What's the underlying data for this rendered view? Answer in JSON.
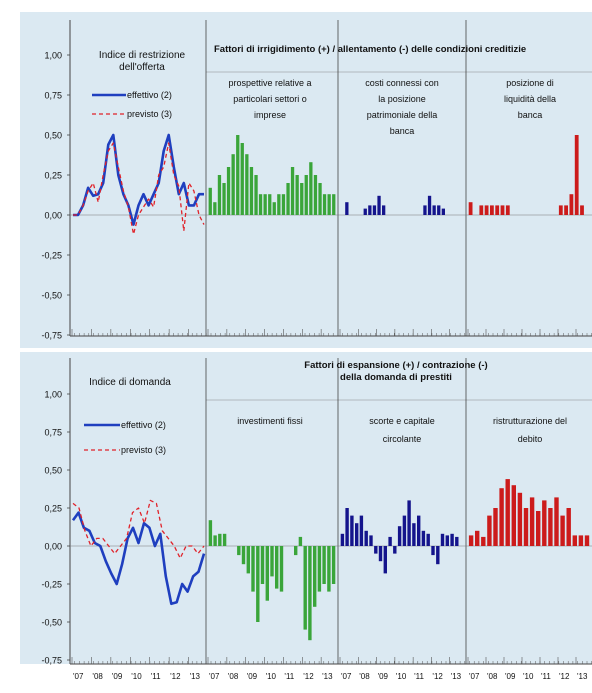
{
  "colors": {
    "background": "#dbe9f2",
    "effettivo": "#1f3fbf",
    "previsto": "#e0222a",
    "green": "#3aa53a",
    "blue": "#14148c",
    "red": "#cc1b1b",
    "axis": "#555555"
  },
  "y_ticks": [
    "1,00",
    "0,75",
    "0,50",
    "0,25",
    "0,00",
    "-0,25",
    "-0,50",
    "-0,75"
  ],
  "x_tick_labels": [
    "'07",
    "'08",
    "'09",
    "'10",
    "'11",
    "'12",
    "'13"
  ],
  "chart_data": [
    {
      "type": "line+bar",
      "title_left": "Indice di restrizione dell'offerta",
      "title_right": "Fattori di irrigidimento (+) / allentamento (-) delle condizioni creditizie",
      "ylim": [
        -0.75,
        1.0
      ],
      "grid": false,
      "legend": [
        "effettivo (2)",
        "previsto (3)"
      ],
      "lines": [
        {
          "name": "effettivo (2)",
          "style": "solid",
          "values": [
            0,
            0,
            0.06,
            0.17,
            0.12,
            0.13,
            0.2,
            0.44,
            0.5,
            0.25,
            0.13,
            0.06,
            -0.06,
            0.06,
            0.13,
            0.06,
            0.13,
            0.2,
            0.4,
            0.5,
            0.3,
            0.13,
            0.2,
            0.06,
            0.06,
            0.13,
            0.13
          ]
        },
        {
          "name": "previsto (3)",
          "style": "dashed",
          "values": [
            0,
            0,
            0.06,
            0.15,
            0.2,
            0.08,
            0.25,
            0.4,
            0.45,
            0.3,
            0.15,
            0.05,
            -0.12,
            0.0,
            0.05,
            0.1,
            0.05,
            0.25,
            0.3,
            0.45,
            0.25,
            0.18,
            -0.1,
            0.2,
            0.15,
            0.0,
            -0.06
          ]
        }
      ],
      "panels": [
        {
          "label": "prospettive relative a particolari settori o imprese",
          "color": "green",
          "values": [
            0.17,
            0.08,
            0.25,
            0.2,
            0.3,
            0.38,
            0.5,
            0.45,
            0.38,
            0.3,
            0.25,
            0.13,
            0.13,
            0.13,
            0.08,
            0.13,
            0.13,
            0.2,
            0.3,
            0.25,
            0.2,
            0.25,
            0.33,
            0.25,
            0.2,
            0.13,
            0.13,
            0.13
          ]
        },
        {
          "label": "costi connessi con la posizione patrimoniale della banca",
          "color": "blue",
          "values": [
            0,
            0.08,
            0,
            0,
            0,
            0.04,
            0.06,
            0.06,
            0.12,
            0.06,
            0,
            0,
            0,
            0,
            0,
            0,
            0,
            0,
            0.06,
            0.12,
            0.06,
            0.06,
            0.04,
            0,
            0,
            0,
            0
          ]
        },
        {
          "label": "posizione di liquidità della banca",
          "color": "red",
          "values": [
            0.08,
            0,
            0.06,
            0.06,
            0.06,
            0.06,
            0.06,
            0.06,
            0,
            0,
            0,
            0,
            0,
            0,
            0,
            0,
            0,
            0.06,
            0.06,
            0.13,
            0.5,
            0.06,
            0
          ]
        }
      ]
    },
    {
      "type": "line+bar",
      "title_left": "Indice di domanda",
      "title_right": "Fattori di espansione (+) / contrazione (-) della domanda di prestiti",
      "ylim": [
        -0.75,
        1.0
      ],
      "grid": false,
      "legend": [
        "effettivo (2)",
        "previsto (3)"
      ],
      "lines": [
        {
          "name": "effettivo (2)",
          "style": "solid",
          "values": [
            0.17,
            0.22,
            0.12,
            0.1,
            0.02,
            0.0,
            -0.1,
            -0.18,
            -0.25,
            -0.12,
            0.05,
            0.12,
            0.02,
            0.15,
            0.12,
            0.0,
            0.08,
            -0.2,
            -0.38,
            -0.37,
            -0.25,
            -0.3,
            -0.2,
            -0.17,
            -0.05
          ]
        },
        {
          "name": "previsto (3)",
          "style": "dashed",
          "values": [
            0.28,
            0.25,
            0.1,
            0.0,
            0.05,
            0.05,
            0.0,
            -0.05,
            0.0,
            0.05,
            0.22,
            0.25,
            0.15,
            0.3,
            0.28,
            0.1,
            0.05,
            0.0,
            -0.08,
            0.0,
            0.0,
            -0.05,
            0.0
          ]
        }
      ],
      "panels": [
        {
          "label": "investimenti fissi",
          "color": "green",
          "values": [
            0.17,
            0.07,
            0.08,
            0.08,
            0,
            0,
            -0.06,
            -0.12,
            -0.18,
            -0.3,
            -0.5,
            -0.25,
            -0.36,
            -0.2,
            -0.28,
            -0.3,
            0,
            0,
            -0.06,
            0.06,
            -0.55,
            -0.62,
            -0.4,
            -0.3,
            -0.25,
            -0.3,
            -0.25
          ]
        },
        {
          "label": "scorte e capitale circolante",
          "color": "blue",
          "values": [
            0.08,
            0.25,
            0.2,
            0.15,
            0.2,
            0.1,
            0.07,
            -0.05,
            -0.1,
            -0.18,
            0.06,
            -0.05,
            0.13,
            0.2,
            0.3,
            0.15,
            0.2,
            0.1,
            0.08,
            -0.06,
            -0.12,
            0.08,
            0.07,
            0.08,
            0.06,
            0
          ]
        },
        {
          "label": "ristrutturazione del debito",
          "color": "red",
          "values": [
            0.07,
            0.1,
            0.06,
            0.2,
            0.25,
            0.38,
            0.44,
            0.4,
            0.35,
            0.25,
            0.32,
            0.23,
            0.3,
            0.25,
            0.32,
            0.2,
            0.25,
            0.07,
            0.07,
            0.07
          ]
        }
      ]
    }
  ]
}
